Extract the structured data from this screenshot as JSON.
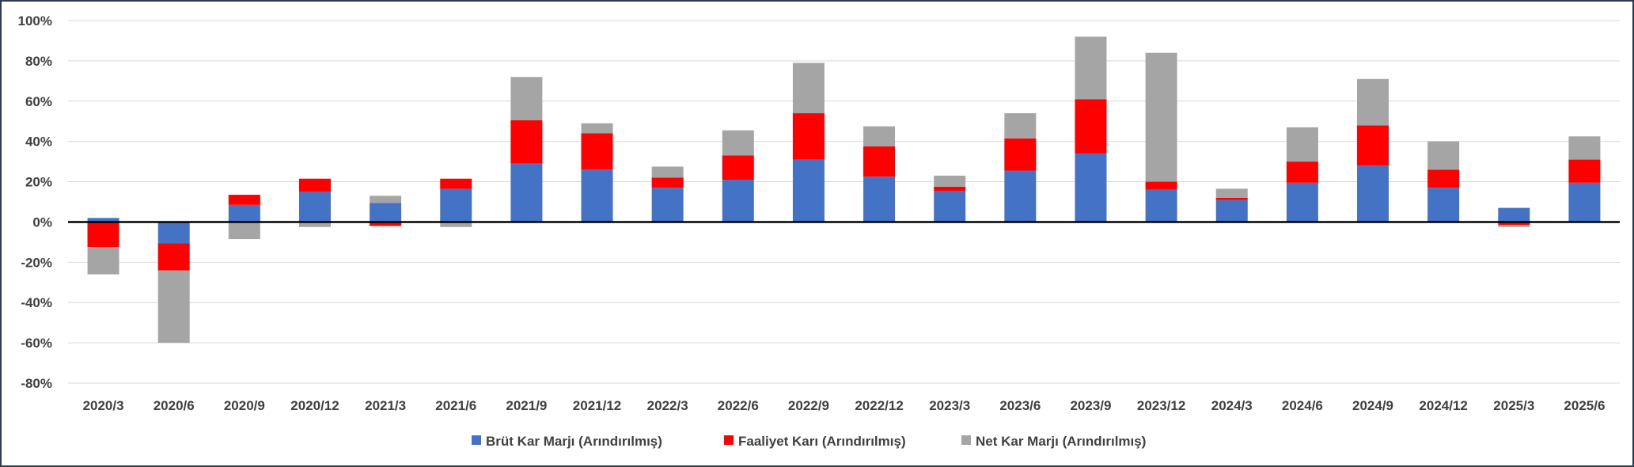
{
  "chart_data": {
    "type": "bar",
    "stacked": true,
    "categories": [
      "2020/3",
      "2020/6",
      "2020/9",
      "2020/12",
      "2021/3",
      "2021/6",
      "2021/9",
      "2021/12",
      "2022/3",
      "2022/6",
      "2022/9",
      "2022/12",
      "2023/3",
      "2023/6",
      "2023/9",
      "2023/12",
      "2024/3",
      "2024/6",
      "2024/9",
      "2024/12",
      "2025/3",
      "2025/6"
    ],
    "series": [
      {
        "name": "Brüt Kar Marjı (Arındırılmış)",
        "color": "#4472c4",
        "values": [
          2,
          -10.5,
          8.5,
          15,
          9.5,
          16.5,
          29,
          26,
          17,
          21,
          31,
          22.5,
          15.5,
          25.5,
          34,
          16,
          11,
          19.5,
          28,
          17,
          7,
          19.5
        ]
      },
      {
        "name": "Faaliyet Karı (Arındırılmış)",
        "color": "#ff0000",
        "values": [
          -12.5,
          -13.5,
          5,
          6.5,
          -2,
          5,
          21.5,
          18,
          5,
          12,
          23,
          15,
          2,
          16,
          27,
          4,
          1,
          10.5,
          20,
          9,
          -1.5,
          11.5
        ]
      },
      {
        "name": "Net Kar Marjı (Arındırılmış)",
        "color": "#a5a5a5",
        "values": [
          -13.5,
          -36,
          -8.5,
          -2.5,
          3.5,
          -2.5,
          21.5,
          5,
          5.5,
          12.5,
          25,
          10,
          5.5,
          12.5,
          31,
          64,
          4.5,
          17,
          23,
          14,
          -1,
          11.5
        ]
      }
    ],
    "ylim": [
      -80,
      100
    ],
    "ytick_step": 20,
    "yticks": [
      "100%",
      "80%",
      "60%",
      "40%",
      "20%",
      "0%",
      "-20%",
      "-40%",
      "-60%",
      "-80%"
    ],
    "grid": true,
    "legend_position": "bottom"
  }
}
